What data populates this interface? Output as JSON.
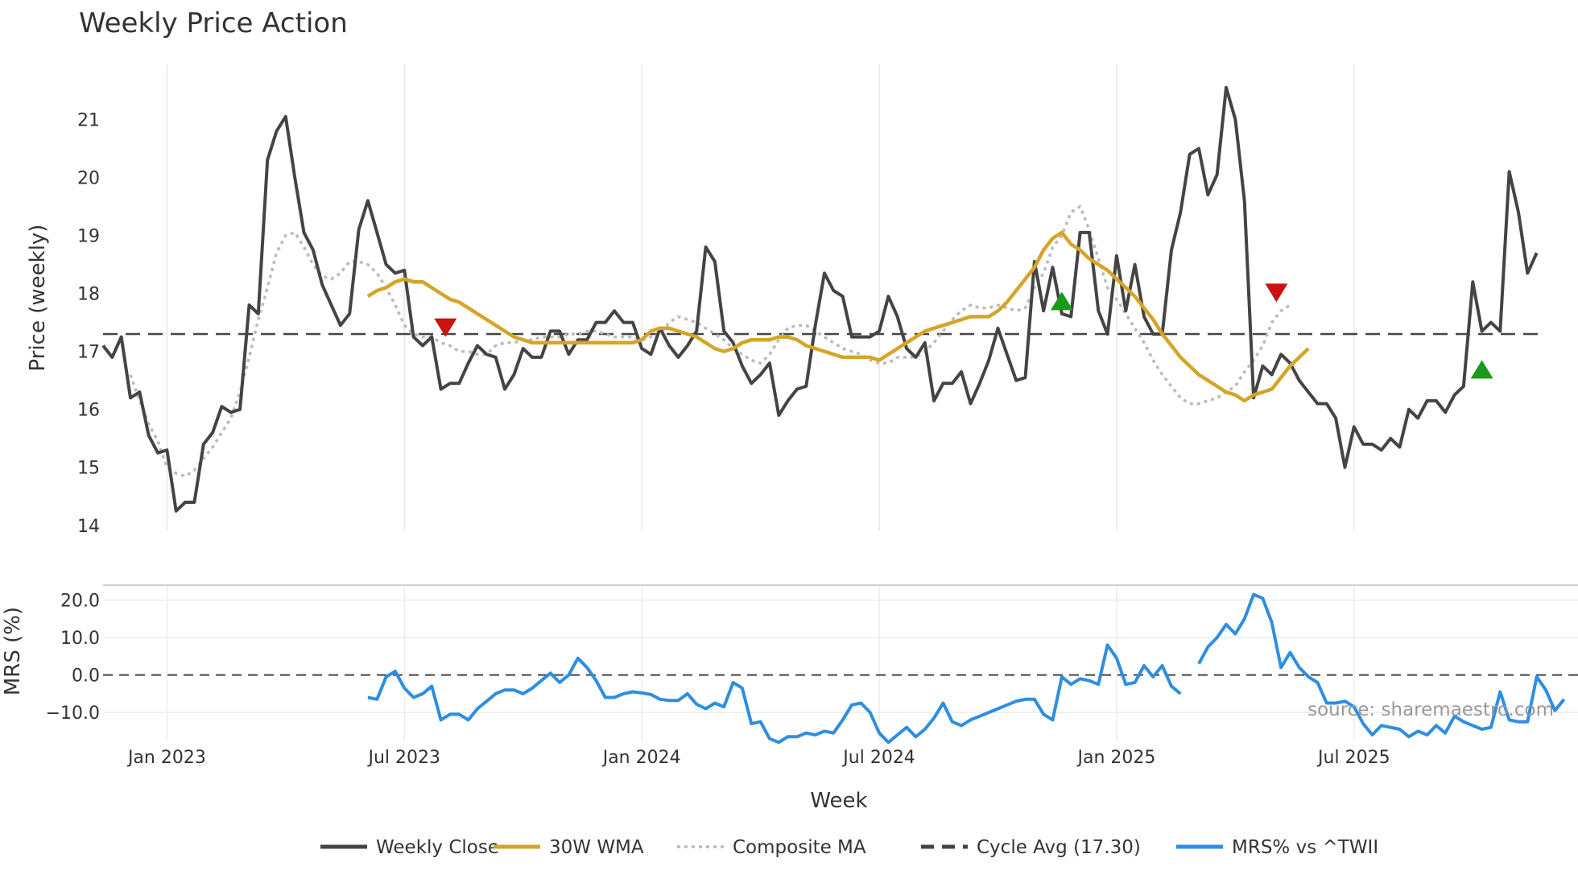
{
  "chart_data": {
    "type": "line",
    "title": "Weekly Price Action",
    "xlabel": "Week",
    "source": "source: sharemaestro.com",
    "colors": {
      "close": "#444444",
      "wma": "#d4a52a",
      "composite": "#bbbbbb",
      "cycle": "#444444",
      "mrs": "#2e8ee0",
      "buy": "#1a9a1a",
      "sell": "#cc1111"
    },
    "x_ticks": [
      {
        "label": "Jan 2023",
        "week": 11
      },
      {
        "label": "Jul 2023",
        "week": 37
      },
      {
        "label": "Jan 2024",
        "week": 63
      },
      {
        "label": "Jul 2024",
        "week": 89
      },
      {
        "label": "Jan 2025",
        "week": 115
      },
      {
        "label": "Jul 2025",
        "week": 141
      }
    ],
    "x_range": [
      4,
      162
    ],
    "price_panel": {
      "ylabel": "Price (weekly)",
      "ylim": [
        13.9,
        21.95
      ],
      "y_ticks": [
        "14",
        "15",
        "16",
        "17",
        "18",
        "19",
        "20",
        "21"
      ],
      "cycle_avg": 17.3,
      "series": [
        {
          "name": "Weekly Close",
          "start_week": 4,
          "values": [
            17.1,
            16.9,
            17.25,
            16.2,
            16.3,
            15.55,
            15.25,
            15.3,
            14.25,
            14.4,
            14.4,
            15.4,
            15.6,
            16.05,
            15.95,
            16.0,
            17.8,
            17.65,
            20.3,
            20.8,
            21.05,
            20.0,
            19.05,
            18.75,
            18.15,
            17.8,
            17.45,
            17.65,
            19.1,
            19.6,
            19.05,
            18.5,
            18.35,
            18.4,
            17.25,
            17.1,
            17.25,
            16.35,
            16.45,
            16.45,
            16.8,
            17.1,
            16.95,
            16.9,
            16.35,
            16.6,
            17.05,
            16.9,
            16.9,
            17.35,
            17.35,
            16.95,
            17.2,
            17.2,
            17.5,
            17.5,
            17.7,
            17.5,
            17.5,
            17.05,
            16.95,
            17.4,
            17.1,
            16.9,
            17.1,
            17.35,
            18.8,
            18.55,
            17.35,
            17.15,
            16.75,
            16.45,
            16.6,
            16.8,
            15.9,
            16.15,
            16.35,
            16.4,
            17.45,
            18.35,
            18.05,
            17.95,
            17.25,
            17.25,
            17.25,
            17.35,
            17.95,
            17.6,
            17.05,
            16.9,
            17.15,
            16.15,
            16.45,
            16.45,
            16.65,
            16.1,
            16.45,
            16.85,
            17.4,
            16.95,
            16.5,
            16.55,
            18.55,
            17.7,
            18.45,
            17.65,
            17.6,
            19.05,
            19.05,
            17.7,
            17.3,
            18.65,
            17.7,
            18.5,
            17.6,
            17.3,
            17.3,
            18.75,
            19.4,
            20.4,
            20.5,
            19.7,
            20.05,
            21.55,
            21.0,
            19.6,
            16.2,
            16.75,
            16.6,
            16.95,
            16.8,
            16.5,
            16.3,
            16.1,
            16.1,
            15.85,
            15.0,
            15.7,
            15.4,
            15.4,
            15.3,
            15.5,
            15.35,
            16.0,
            15.85,
            16.15,
            16.15,
            15.95,
            16.25,
            16.4,
            18.2,
            17.35,
            17.5,
            17.35,
            20.1,
            19.4,
            18.35,
            18.7
          ]
        },
        {
          "name": "30W WMA",
          "start_week": 33,
          "values": [
            17.95,
            18.05,
            18.1,
            18.2,
            18.25,
            18.2,
            18.2,
            18.1,
            18.0,
            17.9,
            17.85,
            17.75,
            17.65,
            17.55,
            17.45,
            17.35,
            17.25,
            17.2,
            17.15,
            17.15,
            17.15,
            17.15,
            17.15,
            17.15,
            17.15,
            17.15,
            17.15,
            17.15,
            17.15,
            17.15,
            17.2,
            17.35,
            17.4,
            17.4,
            17.35,
            17.3,
            17.25,
            17.15,
            17.05,
            17.0,
            17.05,
            17.15,
            17.2,
            17.2,
            17.2,
            17.25,
            17.25,
            17.2,
            17.1,
            17.05,
            17.0,
            16.95,
            16.9,
            16.9,
            16.9,
            16.9,
            16.85,
            16.95,
            17.05,
            17.15,
            17.25,
            17.35,
            17.4,
            17.45,
            17.5,
            17.55,
            17.6,
            17.6,
            17.6,
            17.7,
            17.85,
            18.05,
            18.25,
            18.45,
            18.75,
            18.95,
            19.05,
            18.85,
            18.75,
            18.6,
            18.5,
            18.4,
            18.25,
            18.1,
            17.95,
            17.75,
            17.55,
            17.3,
            17.1,
            16.9,
            16.75,
            16.6,
            16.5,
            16.4,
            16.3,
            16.25,
            16.15,
            16.25,
            16.3,
            16.35,
            16.55,
            16.75,
            16.9,
            17.05
          ]
        },
        {
          "name": "Composite MA",
          "start_week": 7,
          "values": [
            16.6,
            16.15,
            15.75,
            15.45,
            15.0,
            14.9,
            14.85,
            14.95,
            15.15,
            15.35,
            15.6,
            15.85,
            16.3,
            16.9,
            17.55,
            18.1,
            18.7,
            19.0,
            19.05,
            18.8,
            18.5,
            18.3,
            18.25,
            18.35,
            18.55,
            18.55,
            18.5,
            18.35,
            18.1,
            17.8,
            17.45,
            17.3,
            17.25,
            17.25,
            17.15,
            17.1,
            17.0,
            17.0,
            16.95,
            16.95,
            17.1,
            17.15,
            17.15,
            17.2,
            17.2,
            17.25,
            17.25,
            17.25,
            17.3,
            17.3,
            17.35,
            17.35,
            17.3,
            17.25,
            17.25,
            17.25,
            17.2,
            17.25,
            17.3,
            17.5,
            17.6,
            17.55,
            17.5,
            17.4,
            17.3,
            17.2,
            17.05,
            16.95,
            16.85,
            16.8,
            16.95,
            17.2,
            17.4,
            17.45,
            17.45,
            17.35,
            17.25,
            17.15,
            17.05,
            17.0,
            16.95,
            16.85,
            16.8,
            16.8,
            16.9,
            16.9,
            16.9,
            17.0,
            17.15,
            17.35,
            17.55,
            17.7,
            17.8,
            17.75,
            17.75,
            17.8,
            17.75,
            17.7,
            17.75,
            18.1,
            18.35,
            18.8,
            19.0,
            19.4,
            19.5,
            19.1,
            18.6,
            18.1,
            17.9,
            17.65,
            17.4,
            17.15,
            16.85,
            16.6,
            16.4,
            16.2,
            16.1,
            16.1,
            16.15,
            16.2,
            16.3,
            16.4,
            16.65,
            16.85,
            17.1,
            17.5,
            17.7,
            17.8
          ]
        }
      ],
      "signals": [
        {
          "type": "sell",
          "week": 41.5,
          "value": 17.43
        },
        {
          "type": "buy",
          "week": 109,
          "value": 17.85
        },
        {
          "type": "sell",
          "week": 132.5,
          "value": 18.03
        },
        {
          "type": "buy",
          "week": 155,
          "value": 16.67
        }
      ]
    },
    "mrs_panel": {
      "ylabel": "MRS (%)",
      "ylim": [
        -17.5,
        24
      ],
      "y_ticks": [
        {
          "label": "20.0",
          "value": 20
        },
        {
          "label": "10.0",
          "value": 10
        },
        {
          "label": "0.0",
          "value": 0
        },
        {
          "label": "−10.0",
          "value": -10
        }
      ],
      "zero_line": 0,
      "series": [
        {
          "name": "MRS% vs ^TWII",
          "start_week": 33,
          "values": [
            -6.0,
            -6.5,
            -0.5,
            1.0,
            -3.5,
            -6.0,
            -5.0,
            -3.0,
            -12.0,
            -10.5,
            -10.5,
            -12.0,
            -9.0,
            -7.0,
            -5.0,
            -4.0,
            -4.0,
            -5.0,
            -3.5,
            -1.5,
            0.5,
            -2.0,
            0.0,
            4.5,
            2.0,
            -1.5,
            -6.0,
            -6.0,
            -5.0,
            -4.5,
            -4.8,
            -5.2,
            -6.5,
            -6.8,
            -6.8,
            -5.0,
            -7.8,
            -9.0,
            -7.5,
            -8.5,
            -2.0,
            -3.5,
            -13.0,
            -12.5,
            -17.0,
            -18.0,
            -16.5,
            -16.5,
            -15.5,
            -16.0,
            -15.0,
            -15.5,
            -12.0,
            -8.0,
            -7.5,
            -10.0,
            -15.5,
            -18.0,
            -16.0,
            -14.0,
            -16.5,
            -14.5,
            -11.5,
            -7.5,
            -12.5,
            -13.5,
            -12.0,
            -11.0,
            -10.0,
            -9.0,
            -8.0,
            -7.0,
            -6.5,
            -6.5,
            -10.5,
            -12.0,
            -0.5,
            -2.5,
            -1.0,
            -1.5,
            -2.5,
            8.0,
            4.5,
            -2.5,
            -2.0,
            2.5,
            -0.5,
            2.5,
            -3.0,
            -5.0,
            null,
            3.0,
            7.5,
            10.0,
            13.5,
            11.0,
            15.0,
            21.5,
            20.5,
            14.0,
            2.0,
            6.0,
            2.0,
            -0.5,
            -2.0,
            -7.5,
            -7.5,
            -7.0,
            -8.5,
            -13.0,
            -16.0,
            -13.5,
            -14.0,
            -14.5,
            -16.5,
            -15.0,
            -16.0,
            -13.5,
            -15.5,
            -11.0,
            -12.5,
            -13.5,
            -14.5,
            -14.0,
            -4.5,
            -12.0,
            -12.5,
            -12.5,
            -0.5,
            -4.0,
            -9.5,
            -6.5
          ]
        }
      ]
    },
    "legend": [
      {
        "label": "Weekly Close",
        "key": "close",
        "style": "solid"
      },
      {
        "label": "30W WMA",
        "key": "wma",
        "style": "solid"
      },
      {
        "label": "Composite MA",
        "key": "composite",
        "style": "dotted"
      },
      {
        "label": "Cycle Avg (17.30)",
        "key": "cycle",
        "style": "dashed"
      },
      {
        "label": "MRS% vs ^TWII",
        "key": "mrs",
        "style": "solid"
      }
    ]
  }
}
